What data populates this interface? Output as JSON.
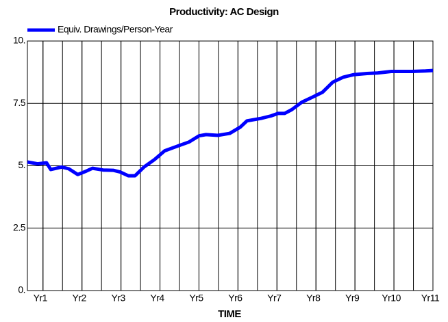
{
  "chart_data": {
    "type": "line",
    "title": "Productivity: AC Design",
    "xlabel": "TIME",
    "x": [
      0.6,
      0.86,
      1.09,
      1.2,
      1.48,
      1.66,
      1.89,
      2.1,
      2.27,
      2.54,
      2.8,
      2.98,
      3.19,
      3.36,
      3.59,
      3.86,
      4.12,
      4.47,
      4.74,
      5.0,
      5.18,
      5.49,
      5.79,
      6.06,
      6.23,
      6.59,
      6.85,
      7.03,
      7.2,
      7.38,
      7.64,
      7.91,
      8.17,
      8.43,
      8.7,
      8.96,
      9.31,
      9.58,
      9.93,
      10.46,
      10.81,
      11.0
    ],
    "series": [
      {
        "name": "Equiv. Drawings/Person-Year",
        "color": "#0000ff",
        "values": [
          5.15,
          5.08,
          5.12,
          4.85,
          4.95,
          4.88,
          4.65,
          4.78,
          4.9,
          4.83,
          4.82,
          4.75,
          4.6,
          4.6,
          4.95,
          5.25,
          5.6,
          5.8,
          5.95,
          6.2,
          6.25,
          6.22,
          6.3,
          6.55,
          6.8,
          6.9,
          7.0,
          7.1,
          7.1,
          7.25,
          7.55,
          7.75,
          7.95,
          8.35,
          8.55,
          8.65,
          8.7,
          8.72,
          8.78,
          8.78,
          8.8,
          8.82
        ]
      }
    ],
    "xlim": [
      0.6,
      11
    ],
    "xticks": [
      {
        "value": 1,
        "label": "Yr1"
      },
      {
        "value": 2,
        "label": "Yr2"
      },
      {
        "value": 3,
        "label": "Yr3"
      },
      {
        "value": 4,
        "label": "Yr4"
      },
      {
        "value": 5,
        "label": "Yr5"
      },
      {
        "value": 6,
        "label": "Yr6"
      },
      {
        "value": 7,
        "label": "Yr7"
      },
      {
        "value": 8,
        "label": "Yr8"
      },
      {
        "value": 9,
        "label": "Yr9"
      },
      {
        "value": 10,
        "label": "Yr10"
      },
      {
        "value": 11,
        "label": "Yr11"
      }
    ],
    "minor_grid_step": 0.5,
    "ylim": [
      0,
      10
    ],
    "yticks": [
      {
        "value": 0,
        "label": "0."
      },
      2.5,
      {
        "value": 5,
        "label": "5."
      },
      7.5,
      {
        "value": 10,
        "label": "10."
      }
    ],
    "grid": true,
    "legend": "top-left"
  }
}
